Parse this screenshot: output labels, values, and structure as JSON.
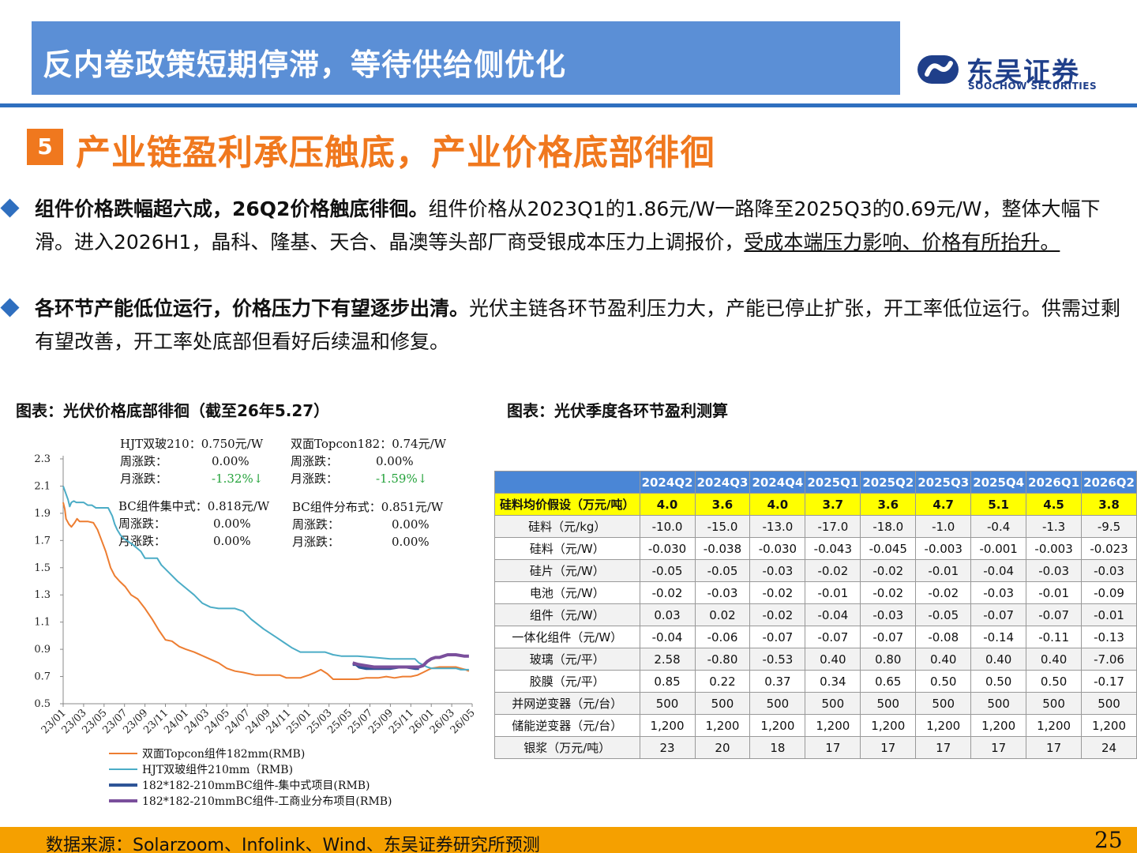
{
  "header": {
    "title": "反内卷政策短期停滞，等待供给侧优化",
    "logo_cn": "东吴证券",
    "logo_en": "SOOCHOW SECURITIES"
  },
  "section": {
    "number": "5",
    "title": "产业链盈利承压触底，产业价格底部徘徊"
  },
  "bullets": [
    {
      "bold": "组件价格跌幅超六成，26Q2价格触底徘徊。",
      "text": "组件价格从2023Q1的1.86元/W一路降至2025Q3的0.69元/W，整体大幅下滑。进入2026H1，晶科、隆基、天合、晶澳等头部厂商受银成本压力上调报价，",
      "underline": "受成本端压力影响、价格有所抬升。"
    },
    {
      "bold": "各环节产能低位运行，价格压力下有望逐步出清。",
      "text": "光伏主链各环节盈利压力大，产能已停止扩张，开工率低位运行。供需过剩有望改善，开工率处底部但看好后续温和修复。",
      "underline": ""
    }
  ],
  "left_caption": "图表：光伏价格底部徘徊（截至26年5.27）",
  "right_caption": "图表：光伏季度各环节盈利测算",
  "chart_annotations": {
    "hjt": {
      "name": "HJT双玻210：0.750元/W",
      "week_label": "周涨跌：",
      "week": "0.00%",
      "month_label": "月涨跌：",
      "month": "-1.32%↓"
    },
    "topcon": {
      "name": "双面Topcon182：0.74元/W",
      "week_label": "周涨跌：",
      "week": "0.00%",
      "month_label": "月涨跌：",
      "month": "-1.59%↓"
    },
    "bc_central": {
      "name": "BC组件集中式：0.818元/W",
      "week_label": "周涨跌：",
      "week": "0.00%",
      "month_label": "月涨跌：",
      "month": "0.00%"
    },
    "bc_dist": {
      "name": "BC组件分布式：0.851元/W",
      "week_label": "周涨跌：",
      "week": "0.00%",
      "month_label": "月涨跌：",
      "month": "0.00%"
    }
  },
  "chart_data": {
    "type": "line",
    "ylim": [
      0.5,
      2.3
    ],
    "yticks": [
      "2.3",
      "2.1",
      "1.9",
      "1.7",
      "1.5",
      "1.3",
      "1.1",
      "0.9",
      "0.7",
      "0.5"
    ],
    "xticks": [
      "23/01",
      "23/03",
      "23/05",
      "23/07",
      "23/09",
      "23/11",
      "24/01",
      "24/03",
      "24/05",
      "24/07",
      "24/09",
      "24/11",
      "25/01",
      "25/03",
      "25/05",
      "25/07",
      "25/09",
      "25/11",
      "26/01",
      "26/03",
      "26/05"
    ],
    "grid": false,
    "legend_position": "bottom",
    "series": [
      {
        "name": "双面Topcon组件182mm(RMB)",
        "color": "#ed7d31",
        "points": [
          [
            0,
            1.98
          ],
          [
            0.2,
            1.93
          ],
          [
            0.35,
            1.86
          ],
          [
            0.7,
            1.82
          ],
          [
            1.0,
            1.8
          ],
          [
            1.4,
            1.83
          ],
          [
            1.7,
            1.86
          ],
          [
            2.0,
            1.84
          ],
          [
            3.0,
            1.84
          ],
          [
            3.7,
            1.83
          ],
          [
            4.2,
            1.78
          ],
          [
            4.7,
            1.7
          ],
          [
            5.2,
            1.62
          ],
          [
            5.8,
            1.5
          ],
          [
            6.3,
            1.44
          ],
          [
            6.9,
            1.4
          ],
          [
            7.6,
            1.36
          ],
          [
            8.3,
            1.3
          ],
          [
            9.1,
            1.27
          ],
          [
            10.0,
            1.2
          ],
          [
            10.9,
            1.12
          ],
          [
            11.7,
            1.04
          ],
          [
            12.5,
            0.97
          ],
          [
            13.3,
            0.96
          ],
          [
            14.2,
            0.92
          ],
          [
            15.0,
            0.9
          ],
          [
            16.0,
            0.88
          ],
          [
            17.5,
            0.84
          ],
          [
            19.0,
            0.8
          ],
          [
            20.0,
            0.76
          ],
          [
            21.0,
            0.74
          ],
          [
            22.0,
            0.73
          ],
          [
            23.5,
            0.71
          ],
          [
            25.0,
            0.71
          ],
          [
            26.5,
            0.71
          ],
          [
            27.3,
            0.69
          ],
          [
            28.0,
            0.69
          ],
          [
            29.0,
            0.69
          ],
          [
            30.0,
            0.71
          ],
          [
            30.8,
            0.73
          ],
          [
            31.5,
            0.75
          ],
          [
            32.3,
            0.72
          ],
          [
            33.0,
            0.68
          ],
          [
            34.0,
            0.68
          ],
          [
            36.0,
            0.68
          ],
          [
            37.0,
            0.69
          ],
          [
            38.5,
            0.69
          ],
          [
            39.5,
            0.7
          ],
          [
            40.5,
            0.69
          ],
          [
            41.5,
            0.7
          ],
          [
            42.5,
            0.7
          ],
          [
            43.3,
            0.71
          ],
          [
            44.0,
            0.73
          ],
          [
            45.0,
            0.76
          ],
          [
            46.0,
            0.77
          ],
          [
            47.0,
            0.77
          ],
          [
            48.0,
            0.77
          ],
          [
            48.6,
            0.76
          ],
          [
            49.2,
            0.75
          ],
          [
            49.6,
            0.74
          ]
        ]
      },
      {
        "name": "HJT双玻组件210mm（RMB)",
        "color": "#4bacc6",
        "points": [
          [
            0,
            2.1
          ],
          [
            0.3,
            2.05
          ],
          [
            0.6,
            2.0
          ],
          [
            0.8,
            1.95
          ],
          [
            1.0,
            1.98
          ],
          [
            1.3,
            1.99
          ],
          [
            1.6,
            1.98
          ],
          [
            2.5,
            1.98
          ],
          [
            3.0,
            1.96
          ],
          [
            3.5,
            1.96
          ],
          [
            4.0,
            1.94
          ],
          [
            5.5,
            1.94
          ],
          [
            6.0,
            1.88
          ],
          [
            6.3,
            1.82
          ],
          [
            6.6,
            1.78
          ],
          [
            7.0,
            1.74
          ],
          [
            7.5,
            1.71
          ],
          [
            8.5,
            1.67
          ],
          [
            9.5,
            1.62
          ],
          [
            10.0,
            1.57
          ],
          [
            11.5,
            1.57
          ],
          [
            12.0,
            1.52
          ],
          [
            13.0,
            1.46
          ],
          [
            14.0,
            1.4
          ],
          [
            15.0,
            1.35
          ],
          [
            16.0,
            1.3
          ],
          [
            17.0,
            1.24
          ],
          [
            18.0,
            1.21
          ],
          [
            19.0,
            1.2
          ],
          [
            21.0,
            1.2
          ],
          [
            22.0,
            1.18
          ],
          [
            23.0,
            1.12
          ],
          [
            24.5,
            1.05
          ],
          [
            26.0,
            0.99
          ],
          [
            27.0,
            0.95
          ],
          [
            28.0,
            0.91
          ],
          [
            29.0,
            0.88
          ],
          [
            32.0,
            0.88
          ],
          [
            33.0,
            0.86
          ],
          [
            34.0,
            0.85
          ],
          [
            36.0,
            0.85
          ],
          [
            38.0,
            0.84
          ],
          [
            40.0,
            0.83
          ],
          [
            43.0,
            0.83
          ],
          [
            43.5,
            0.8
          ],
          [
            44.5,
            0.77
          ],
          [
            45.0,
            0.76
          ],
          [
            46.0,
            0.76
          ],
          [
            47.0,
            0.76
          ],
          [
            48.0,
            0.76
          ],
          [
            48.6,
            0.75
          ],
          [
            49.2,
            0.75
          ],
          [
            49.6,
            0.75
          ]
        ]
      },
      {
        "name": "182*182-210mmBC组件-集中式项目(RMB)",
        "color": "#2e5597",
        "points": [
          [
            35.4,
            0.79
          ],
          [
            35.8,
            0.79
          ],
          [
            36.2,
            0.77
          ],
          [
            37.0,
            0.76
          ],
          [
            38.0,
            0.76
          ],
          [
            39.0,
            0.76
          ],
          [
            40.0,
            0.76
          ],
          [
            41.0,
            0.77
          ],
          [
            42.0,
            0.77
          ],
          [
            43.0,
            0.76
          ],
          [
            43.5,
            0.76
          ]
        ]
      },
      {
        "name": "182*182-210mmBC组件-工商业分布项目(RMB)",
        "color": "#7a4f9c",
        "points": [
          [
            35.4,
            0.8
          ],
          [
            36.0,
            0.79
          ],
          [
            37.0,
            0.78
          ],
          [
            38.0,
            0.77
          ],
          [
            39.0,
            0.77
          ],
          [
            40.0,
            0.77
          ],
          [
            41.0,
            0.77
          ],
          [
            42.0,
            0.77
          ],
          [
            42.6,
            0.77
          ],
          [
            43.5,
            0.77
          ],
          [
            44.0,
            0.78
          ],
          [
            44.5,
            0.81
          ],
          [
            45.0,
            0.83
          ],
          [
            45.5,
            0.84
          ],
          [
            46.0,
            0.84
          ],
          [
            46.5,
            0.85
          ],
          [
            47.0,
            0.86
          ],
          [
            48.0,
            0.86
          ],
          [
            49.0,
            0.85
          ],
          [
            49.6,
            0.85
          ]
        ]
      }
    ]
  },
  "table": {
    "columns": [
      "2024Q2",
      "2024Q3",
      "2024Q4",
      "2025Q1",
      "2025Q2",
      "2025Q3",
      "2025Q4",
      "2026Q1",
      "2026Q2"
    ],
    "rows": [
      {
        "label": "硅料均价假设（万元/吨）",
        "values": [
          "4.0",
          "3.6",
          "4.0",
          "3.7",
          "3.6",
          "4.7",
          "5.1",
          "4.5",
          "3.8"
        ]
      },
      {
        "label": "硅料（元/kg）",
        "values": [
          "-10.0",
          "-15.0",
          "-13.0",
          "-17.0",
          "-18.0",
          "-1.0",
          "-0.4",
          "-1.3",
          "-9.5"
        ]
      },
      {
        "label": "硅料（元/W）",
        "values": [
          "-0.030",
          "-0.038",
          "-0.030",
          "-0.043",
          "-0.045",
          "-0.003",
          "-0.001",
          "-0.003",
          "-0.023"
        ]
      },
      {
        "label": "硅片（元/W）",
        "values": [
          "-0.05",
          "-0.05",
          "-0.03",
          "-0.02",
          "-0.02",
          "-0.01",
          "-0.04",
          "-0.03",
          "-0.03"
        ]
      },
      {
        "label": "电池（元/W）",
        "values": [
          "-0.02",
          "-0.03",
          "-0.02",
          "-0.01",
          "-0.02",
          "-0.02",
          "-0.03",
          "-0.01",
          "-0.09"
        ]
      },
      {
        "label": "组件（元/W）",
        "values": [
          "0.03",
          "0.02",
          "-0.02",
          "-0.04",
          "-0.03",
          "-0.05",
          "-0.07",
          "-0.07",
          "-0.01"
        ]
      },
      {
        "label": "一体化组件（元/W）",
        "values": [
          "-0.04",
          "-0.06",
          "-0.07",
          "-0.07",
          "-0.07",
          "-0.08",
          "-0.14",
          "-0.11",
          "-0.13"
        ]
      },
      {
        "label": "玻璃（元/平）",
        "values": [
          "2.58",
          "-0.80",
          "-0.53",
          "0.40",
          "0.80",
          "0.40",
          "0.40",
          "0.40",
          "-7.06"
        ]
      },
      {
        "label": "胶膜（元/平）",
        "values": [
          "0.85",
          "0.22",
          "0.37",
          "0.34",
          "0.65",
          "0.50",
          "0.50",
          "0.50",
          "-0.17"
        ]
      },
      {
        "label": "并网逆变器（元/台）",
        "values": [
          "500",
          "500",
          "500",
          "500",
          "500",
          "500",
          "500",
          "500",
          "500"
        ]
      },
      {
        "label": "储能逆变器（元/台）",
        "values": [
          "1,200",
          "1,200",
          "1,200",
          "1,200",
          "1,200",
          "1,200",
          "1,200",
          "1,200",
          "1,200"
        ]
      },
      {
        "label": "银浆（万元/吨）",
        "values": [
          "23",
          "20",
          "18",
          "17",
          "17",
          "17",
          "17",
          "17",
          "24"
        ]
      }
    ]
  },
  "footer": {
    "source": "数据来源：Solarzoom、Infolink、Wind、东吴证券研究所预测",
    "page": "25"
  }
}
